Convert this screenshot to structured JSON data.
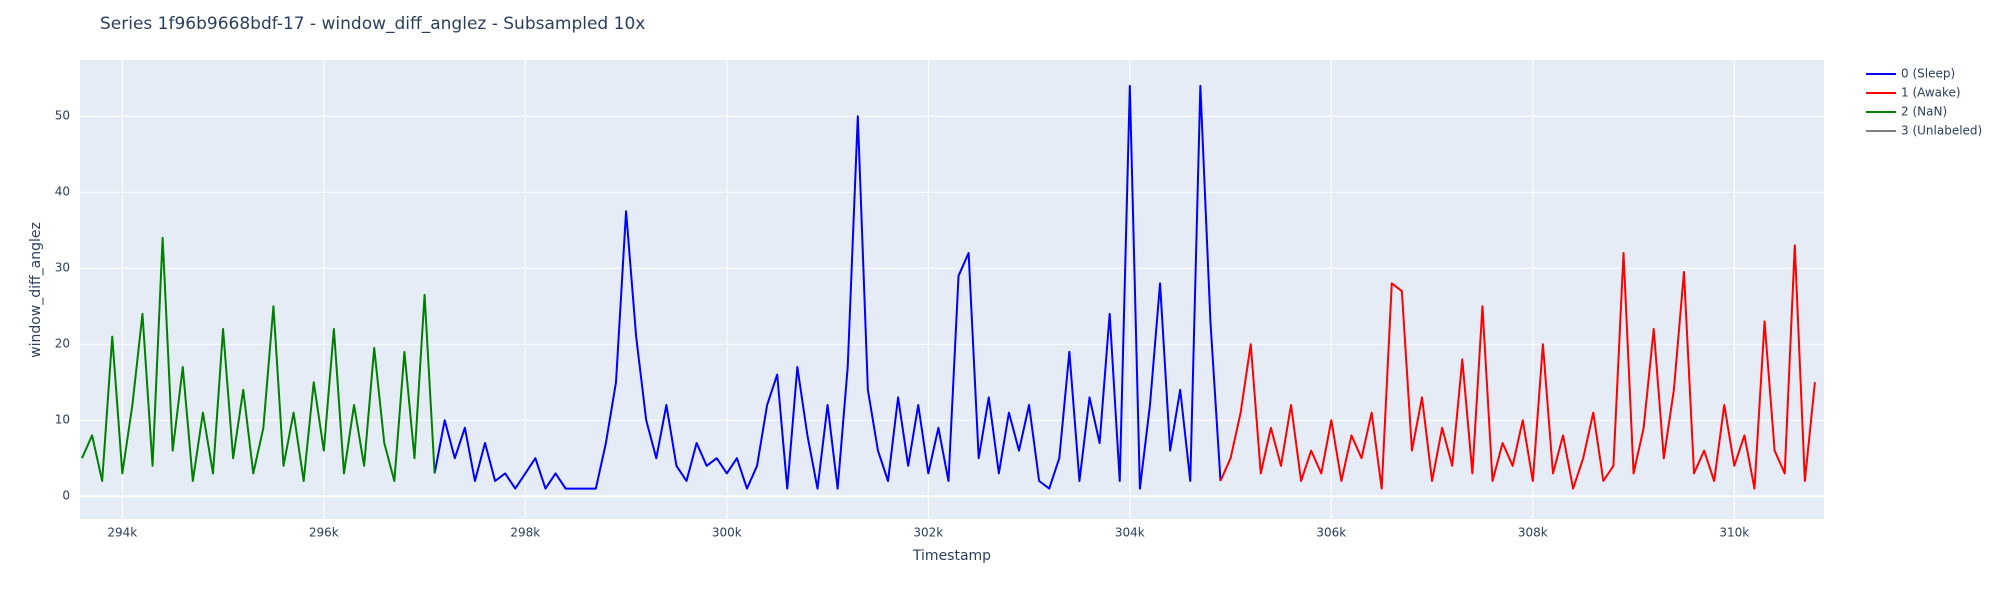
{
  "chart_data": {
    "type": "line",
    "title": "Series 1f96b9668bdf-17 - window_diff_anglez - Subsampled 10x",
    "x_label": "Timestamp",
    "y_label": "window_diff_anglez",
    "xlim": [
      293580,
      310890
    ],
    "ylim": [
      -3,
      57.4
    ],
    "xticks": [
      {
        "value": 294000,
        "label": "294k"
      },
      {
        "value": 296000,
        "label": "296k"
      },
      {
        "value": 298000,
        "label": "298k"
      },
      {
        "value": 300000,
        "label": "300k"
      },
      {
        "value": 302000,
        "label": "302k"
      },
      {
        "value": 304000,
        "label": "304k"
      },
      {
        "value": 306000,
        "label": "306k"
      },
      {
        "value": 308000,
        "label": "308k"
      },
      {
        "value": 310000,
        "label": "310k"
      }
    ],
    "yticks": [
      0,
      10,
      20,
      30,
      40,
      50
    ],
    "grid": true,
    "series": [
      {
        "name": "0 (Sleep)",
        "color": "#0000ff",
        "x": [
          297100,
          297200,
          297300,
          297400,
          297500,
          297600,
          297700,
          297800,
          297900,
          298000,
          298100,
          298200,
          298300,
          298400,
          298500,
          298600,
          298700,
          298800,
          298900,
          299000,
          299100,
          299200,
          299300,
          299400,
          299500,
          299600,
          299700,
          299800,
          299900,
          300000,
          300100,
          300200,
          300300,
          300400,
          300500,
          300600,
          300700,
          300800,
          300900,
          301000,
          301100,
          301200,
          301300,
          301400,
          301500,
          301600,
          301700,
          301800,
          301900,
          302000,
          302100,
          302200,
          302300,
          302400,
          302500,
          302600,
          302700,
          302800,
          302900,
          303000,
          303100,
          303200,
          303300,
          303400,
          303500,
          303600,
          303700,
          303800,
          303900,
          304000,
          304100,
          304200,
          304300,
          304400,
          304500,
          304600,
          304700,
          304800,
          304900
        ],
        "values": [
          3,
          10,
          5,
          9,
          2,
          7,
          2,
          3,
          1,
          3,
          5,
          1,
          3,
          1,
          1,
          1,
          1,
          7,
          15,
          37.5,
          21,
          10,
          5,
          12,
          4,
          2,
          7,
          4,
          5,
          3,
          5,
          1,
          4,
          12,
          16,
          1,
          17,
          8,
          1,
          12,
          1,
          17,
          50,
          14,
          6,
          2,
          13,
          4,
          12,
          3,
          9,
          2,
          29,
          32,
          5,
          13,
          3,
          11,
          6,
          12,
          2,
          1,
          5,
          19,
          2,
          13,
          7,
          24,
          2,
          54,
          1,
          12,
          28,
          6,
          14,
          2,
          54,
          23,
          2
        ]
      },
      {
        "name": "1 (Awake)",
        "color": "#ff0000",
        "x": [
          304900,
          305000,
          305100,
          305200,
          305300,
          305400,
          305500,
          305600,
          305700,
          305800,
          305900,
          306000,
          306100,
          306200,
          306300,
          306400,
          306500,
          306600,
          306700,
          306800,
          306900,
          307000,
          307100,
          307200,
          307300,
          307400,
          307500,
          307600,
          307700,
          307800,
          307900,
          308000,
          308100,
          308200,
          308300,
          308400,
          308500,
          308600,
          308700,
          308800,
          308900,
          309000,
          309100,
          309200,
          309300,
          309400,
          309500,
          309600,
          309700,
          309800,
          309900,
          310000,
          310100,
          310200,
          310300,
          310400,
          310500,
          310600,
          310700,
          310800
        ],
        "values": [
          2,
          5,
          11,
          20,
          3,
          9,
          4,
          12,
          2,
          6,
          3,
          10,
          2,
          8,
          5,
          11,
          1,
          28,
          27,
          6,
          13,
          2,
          9,
          4,
          18,
          3,
          25,
          2,
          7,
          4,
          10,
          2,
          20,
          3,
          8,
          1,
          5,
          11,
          2,
          4,
          32,
          3,
          9,
          22,
          5,
          14,
          29.5,
          3,
          6,
          2,
          12,
          4,
          8,
          1,
          23,
          6,
          3,
          33,
          2,
          15
        ]
      },
      {
        "name": "2 (NaN)",
        "color": "#008000",
        "x": [
          293600,
          293700,
          293800,
          293900,
          294000,
          294100,
          294200,
          294300,
          294400,
          294500,
          294600,
          294700,
          294800,
          294900,
          295000,
          295100,
          295200,
          295300,
          295400,
          295500,
          295600,
          295700,
          295800,
          295900,
          296000,
          296100,
          296200,
          296300,
          296400,
          296500,
          296600,
          296700,
          296800,
          296900,
          297000,
          297100
        ],
        "values": [
          5,
          8,
          2,
          21,
          3,
          12,
          24,
          4,
          34,
          6,
          17,
          2,
          11,
          3,
          22,
          5,
          14,
          3,
          9,
          25,
          4,
          11,
          2,
          15,
          6,
          22,
          3,
          12,
          4,
          19.5,
          7,
          2,
          19,
          5,
          26.5,
          3
        ]
      },
      {
        "name": "3 (Unlabeled)",
        "color": "#808080",
        "x": [],
        "values": []
      }
    ]
  }
}
